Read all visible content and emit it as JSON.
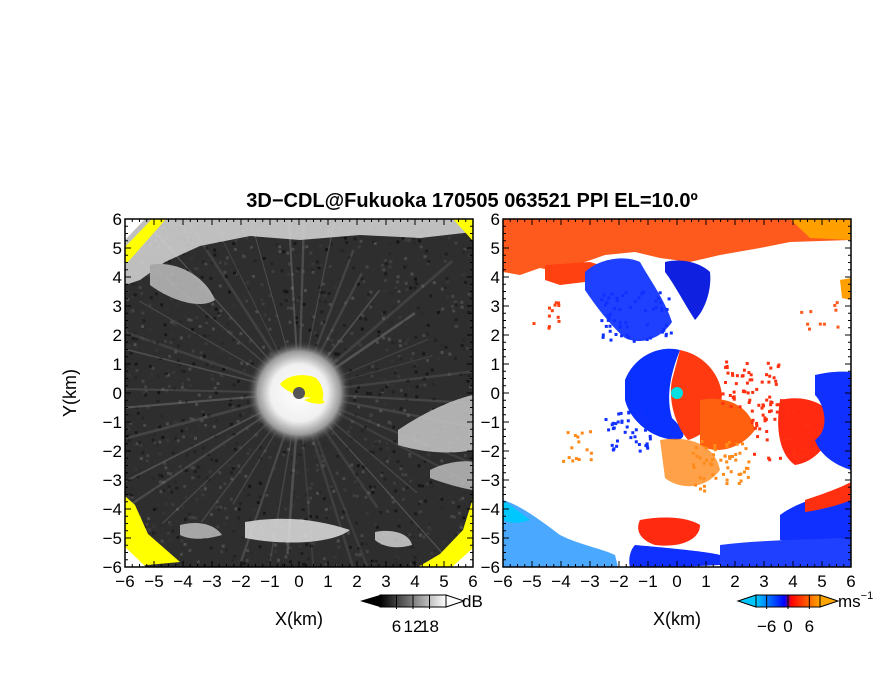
{
  "chart_data": {
    "title": "3D−CDL@Fukuoka 170505 063521 PPI EL=10.0º",
    "panels": [
      {
        "type": "heatmap",
        "field": "reflectivity",
        "xlabel": "X(km)",
        "ylabel": "Y(km)",
        "xlim": [
          -6,
          6
        ],
        "ylim": [
          -6,
          6
        ],
        "x_ticks": [
          "−6",
          "−5",
          "−4",
          "−3",
          "−2",
          "−1",
          "0",
          "1",
          "2",
          "3",
          "4",
          "5",
          "6"
        ],
        "y_ticks": [
          "6",
          "5",
          "4",
          "3",
          "2",
          "1",
          "0",
          "−1",
          "−2",
          "−3",
          "−4",
          "−5",
          "−6"
        ],
        "colorbar": {
          "unit": "dB",
          "ticks": [
            "6",
            "12",
            "18"
          ],
          "tick_values": [
            6,
            12,
            18
          ],
          "range": [
            0,
            24
          ],
          "colors": [
            "#000000",
            "#ffffff"
          ]
        }
      },
      {
        "type": "heatmap",
        "field": "doppler_velocity",
        "xlabel": "X(km)",
        "ylabel": "",
        "xlim": [
          -6,
          6
        ],
        "ylim": [
          -6,
          6
        ],
        "x_ticks": [
          "−6",
          "−5",
          "−4",
          "−3",
          "−2",
          "−1",
          "0",
          "1",
          "2",
          "3",
          "4",
          "5",
          "6"
        ],
        "y_ticks": [
          "6",
          "5",
          "4",
          "3",
          "2",
          "1",
          "0",
          "−1",
          "−2",
          "−3",
          "−4",
          "−5",
          "−6"
        ],
        "colorbar": {
          "unit": "ms",
          "unit_exp": "−1",
          "ticks": [
            "−6",
            "0",
            "6"
          ],
          "tick_values": [
            -6,
            0,
            6
          ],
          "range": [
            -9,
            9
          ],
          "colors": [
            "#00c8ff",
            "#0000ff",
            "#ff0000",
            "#ffa500"
          ]
        }
      }
    ]
  },
  "colors": {
    "reflectivity_dark": "#2a2a2a",
    "reflectivity_light": "#e6e6e6",
    "saturated": "#ffff00",
    "radar_center": "#555555",
    "velocity_center": "#00e0e0",
    "away": "#ff4000",
    "toward": "#0000ff"
  }
}
